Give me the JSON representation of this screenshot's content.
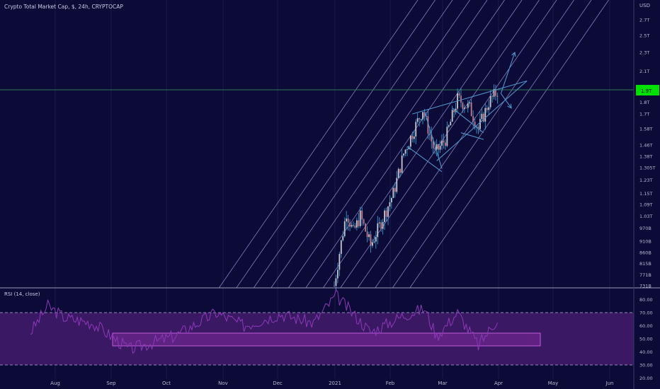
{
  "header": {
    "title": "Crypto Total Market Cap, $, 24h, CRYPTOCAP"
  },
  "price_axis": {
    "currency": "USD",
    "ticks": [
      "2.7T",
      "2.5T",
      "2.3T",
      "2.1T",
      "1.8T",
      "1.7T",
      "1.58T",
      "1.46T",
      "1.38T",
      "1.305T",
      "1.23T",
      "1.15T",
      "1.09T",
      "1.03T",
      "970B",
      "910B",
      "860B",
      "815B",
      "771B",
      "731B"
    ],
    "last_price_label": "1.9T"
  },
  "rsi_panel": {
    "label": "RSI (14, close)",
    "ticks": [
      "80.00",
      "70.00",
      "60.00",
      "50.00",
      "40.00",
      "30.00",
      "20.00"
    ]
  },
  "time_axis": {
    "labels": [
      "Aug",
      "Sep",
      "Oct",
      "Nov",
      "Dec",
      "2021",
      "Feb",
      "Mar",
      "Apr",
      "May",
      "Jun"
    ]
  },
  "colors": {
    "background": "#0c0b38",
    "grid": "#1c1a4a",
    "channel": "#a9a6e8",
    "up_candle": "#c7c7d0",
    "down_candle": "#c07a8b",
    "wick": "#3fa7d6",
    "drawing": "#4f93c9",
    "rsi_line": "#8e39b8",
    "rsi_band": "#3a1864",
    "highlight_box": "#7a2c9a",
    "price_line": "#2d7a55",
    "price_label_bg": "#00e000"
  },
  "chart_data": [
    {
      "type": "candlestick",
      "title": "Crypto Total Market Cap, $, 24h, CRYPTOCAP",
      "y_scale": "log",
      "ylim": [
        730000000000,
        2900000000000
      ],
      "x_labels": [
        "Aug",
        "Sep",
        "Oct",
        "Nov",
        "Dec",
        "2021",
        "Feb",
        "Mar",
        "Apr",
        "May",
        "Jun"
      ],
      "close_approx": [
        {
          "date": "2021-01-01",
          "value": 731000000000
        },
        {
          "date": "2021-01-04",
          "value": 860000000000
        },
        {
          "date": "2021-01-08",
          "value": 1050000000000
        },
        {
          "date": "2021-01-12",
          "value": 950000000000
        },
        {
          "date": "2021-01-16",
          "value": 1030000000000
        },
        {
          "date": "2021-01-22",
          "value": 890000000000
        },
        {
          "date": "2021-01-28",
          "value": 1000000000000
        },
        {
          "date": "2021-02-04",
          "value": 1150000000000
        },
        {
          "date": "2021-02-10",
          "value": 1400000000000
        },
        {
          "date": "2021-02-21",
          "value": 1740000000000
        },
        {
          "date": "2021-02-28",
          "value": 1400000000000
        },
        {
          "date": "2021-03-06",
          "value": 1500000000000
        },
        {
          "date": "2021-03-13",
          "value": 1830000000000
        },
        {
          "date": "2021-03-20",
          "value": 1750000000000
        },
        {
          "date": "2021-03-25",
          "value": 1580000000000
        },
        {
          "date": "2021-03-31",
          "value": 1800000000000
        },
        {
          "date": "2021-04-05",
          "value": 1900000000000
        }
      ],
      "channel": "parallel ascending lines",
      "grid": false
    },
    {
      "type": "line",
      "title": "RSI (14, close)",
      "ylim": [
        20,
        85
      ],
      "levels": [
        70,
        30
      ],
      "highlight_range": [
        45,
        55
      ],
      "values_approx": [
        {
          "date": "2020-07-10",
          "value": 55
        },
        {
          "date": "2020-07-20",
          "value": 75
        },
        {
          "date": "2020-07-30",
          "value": 66
        },
        {
          "date": "2020-08-15",
          "value": 62
        },
        {
          "date": "2020-09-05",
          "value": 42
        },
        {
          "date": "2020-10-01",
          "value": 52
        },
        {
          "date": "2020-10-25",
          "value": 70
        },
        {
          "date": "2020-11-10",
          "value": 60
        },
        {
          "date": "2020-12-01",
          "value": 69
        },
        {
          "date": "2020-12-20",
          "value": 62
        },
        {
          "date": "2021-01-02",
          "value": 83
        },
        {
          "date": "2021-01-22",
          "value": 55
        },
        {
          "date": "2021-02-10",
          "value": 68
        },
        {
          "date": "2021-02-22",
          "value": 73
        },
        {
          "date": "2021-03-01",
          "value": 52
        },
        {
          "date": "2021-03-13",
          "value": 70
        },
        {
          "date": "2021-03-25",
          "value": 45
        },
        {
          "date": "2021-04-05",
          "value": 65
        }
      ]
    }
  ]
}
